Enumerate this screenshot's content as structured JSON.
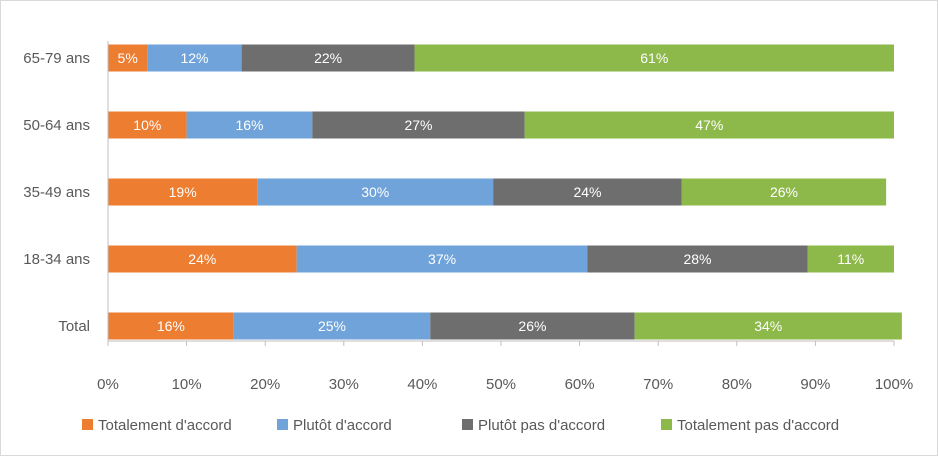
{
  "chart_data": {
    "type": "bar",
    "orientation": "horizontal",
    "stacked": true,
    "categories": [
      "65-79 ans",
      "50-64 ans",
      "35-49 ans",
      "18-34 ans",
      "Total"
    ],
    "series": [
      {
        "name": "Totalement d'accord",
        "color": "#ED7D31",
        "values": [
          5,
          10,
          19,
          24,
          16
        ]
      },
      {
        "name": "Plutôt d'accord",
        "color": "#6FA3D9",
        "values": [
          12,
          16,
          30,
          37,
          25
        ]
      },
      {
        "name": "Plutôt pas d'accord",
        "color": "#6E6E6E",
        "values": [
          22,
          27,
          24,
          28,
          26
        ]
      },
      {
        "name": "Totalement pas d'accord",
        "color": "#8DB84A",
        "values": [
          61,
          47,
          26,
          11,
          34
        ]
      }
    ],
    "xlim": [
      0,
      100
    ],
    "x_ticks": [
      "0%",
      "10%",
      "20%",
      "30%",
      "40%",
      "50%",
      "60%",
      "70%",
      "80%",
      "90%",
      "100%"
    ],
    "value_suffix": "%",
    "legend_position": "bottom",
    "grid": false
  }
}
